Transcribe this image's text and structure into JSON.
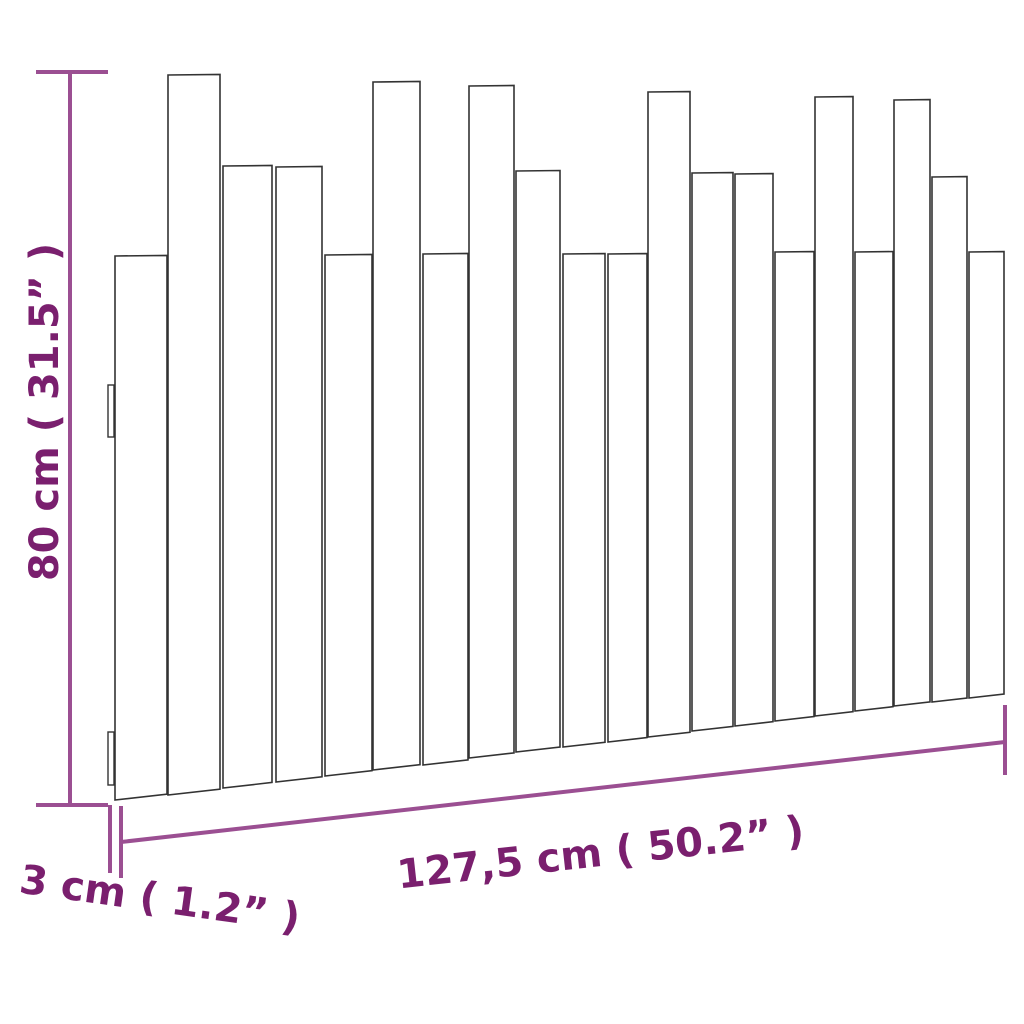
{
  "colors": {
    "dimension_line": "#9b4f92",
    "dimension_text": "#7a1f6e",
    "outline": "#333333",
    "fill": "#ffffff"
  },
  "dimensions": {
    "height_label": "80 cm ( 31.5” )",
    "width_label": "127,5 cm ( 50.2” )",
    "depth_label": "3 cm ( 1.2” )"
  }
}
